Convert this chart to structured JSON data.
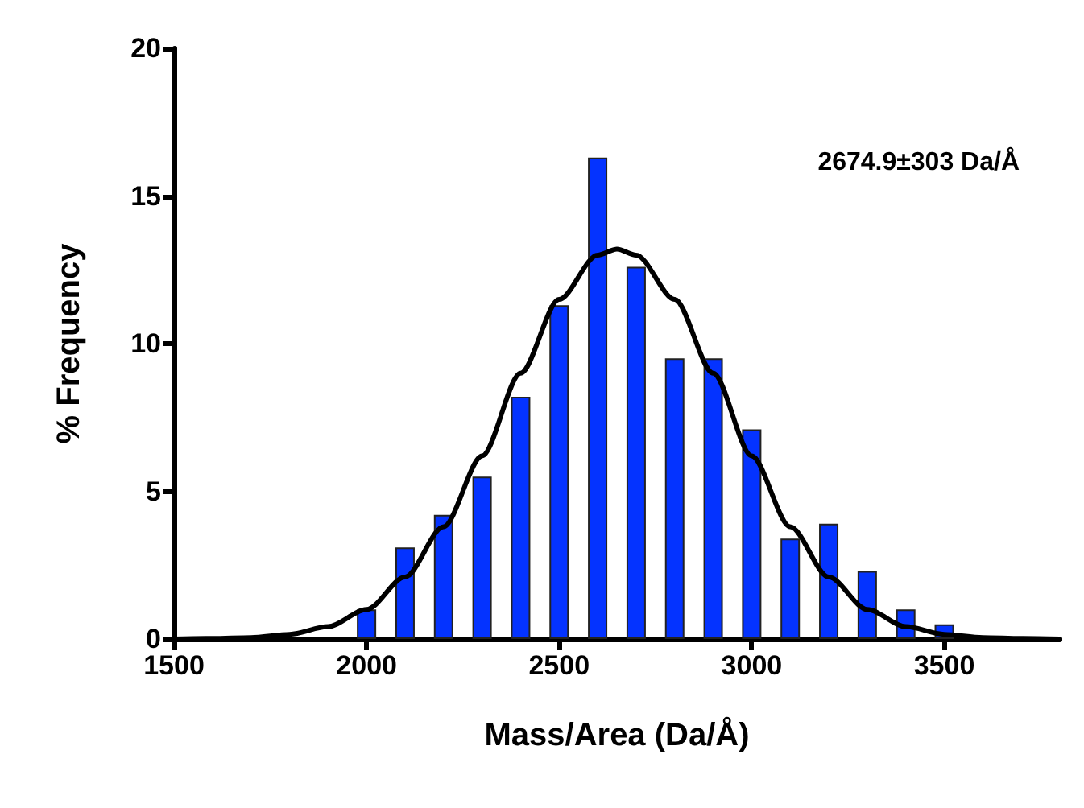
{
  "chart_data": {
    "type": "bar",
    "xlabel": "Mass/Area (Da/Å)",
    "ylabel": "% Frequency",
    "annotations": [
      "2674.9±303 Da/Å"
    ],
    "xlim": [
      1500,
      3800
    ],
    "xticks": [
      1500,
      2000,
      2500,
      3000,
      3500
    ],
    "ylim": [
      0,
      20
    ],
    "yticks": [
      0,
      5,
      10,
      15,
      20
    ],
    "grid": false,
    "x": [
      2000,
      2100,
      2200,
      2300,
      2400,
      2500,
      2600,
      2700,
      2800,
      2900,
      3000,
      3100,
      3200,
      3300,
      3400,
      3500
    ],
    "series": [
      {
        "color": "#0433ff",
        "values": [
          1.0,
          3.1,
          4.2,
          5.5,
          8.2,
          11.3,
          16.3,
          12.6,
          9.5,
          9.5,
          7.1,
          3.4,
          3.9,
          2.3,
          1.0,
          0.5
        ]
      },
      {
        "type": "line",
        "color": "#000000",
        "marker": "none",
        "line_style": "solid",
        "x": [
          1500,
          1600,
          1700,
          1800,
          1900,
          2000,
          2100,
          2200,
          2300,
          2400,
          2500,
          2600,
          2650,
          2700,
          2800,
          2900,
          3000,
          3100,
          3200,
          3300,
          3400,
          3500,
          3600,
          3700,
          3800
        ],
        "values": [
          0,
          0.02,
          0.05,
          0.16,
          0.42,
          1.0,
          2.1,
          3.8,
          6.2,
          9.0,
          11.5,
          13.0,
          13.2,
          13.0,
          11.5,
          9.0,
          6.2,
          3.8,
          2.1,
          1.0,
          0.42,
          0.16,
          0.05,
          0.02,
          0
        ]
      }
    ]
  }
}
